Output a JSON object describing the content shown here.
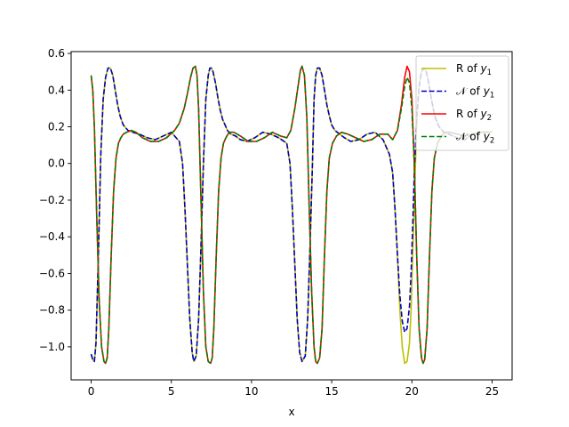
{
  "chart_data": {
    "type": "line",
    "xlabel": "x",
    "ylabel": "",
    "title": "",
    "xlim": [
      -1.25,
      26.25
    ],
    "ylim": [
      -1.18,
      0.61
    ],
    "xticks": [
      0,
      5,
      10,
      15,
      20,
      25
    ],
    "xtick_labels": [
      "0",
      "5",
      "10",
      "15",
      "20",
      "25"
    ],
    "yticks": [
      -1.0,
      -0.8,
      -0.6,
      -0.4,
      -0.2,
      0.0,
      0.2,
      0.4,
      0.6
    ],
    "ytick_labels": [
      "−1.0",
      "−0.8",
      "−0.6",
      "−0.4",
      "−0.2",
      "0.0",
      "0.2",
      "0.4",
      "0.6"
    ],
    "grid": false,
    "legend_position": "upper right",
    "series": [
      {
        "name": "R of y1",
        "legend_main": "R of ",
        "legend_var": "y",
        "legend_sub": "1",
        "color": "#bfbf00",
        "dash": "solid",
        "x": [
          0.0,
          0.1,
          0.2,
          0.3,
          0.45,
          0.6,
          0.75,
          0.9,
          1.05,
          1.2,
          1.35,
          1.5,
          1.65,
          1.8,
          2.0,
          2.3,
          2.6,
          3.0,
          3.5,
          4.0,
          4.5,
          5.0,
          5.5,
          5.7,
          5.85,
          6.0,
          6.15,
          6.3,
          6.4,
          6.55,
          6.7,
          6.85,
          7.0,
          7.15,
          7.3,
          7.4,
          7.5,
          7.6,
          7.75,
          7.9,
          8.05,
          8.2,
          8.35,
          8.5,
          8.7,
          9.0,
          9.3,
          9.7,
          10.2,
          10.7,
          11.2,
          11.7,
          12.2,
          12.4,
          12.55,
          12.7,
          12.85,
          13.0,
          13.15,
          13.35,
          13.5,
          13.65,
          13.8,
          13.9,
          14.0,
          14.1,
          14.25,
          14.4,
          14.55,
          14.7,
          14.85,
          15.0,
          15.2,
          15.5,
          15.8,
          16.2,
          16.7,
          17.2,
          17.7,
          18.2,
          18.6,
          18.8,
          18.95,
          19.1,
          19.25,
          19.4,
          19.55,
          19.7,
          19.85,
          19.95,
          20.05,
          20.15,
          20.3,
          20.45,
          20.6,
          20.75,
          20.9,
          21.05,
          21.2,
          21.35,
          21.5,
          21.7,
          22.0,
          22.3,
          22.8,
          23.3,
          23.8,
          24.3,
          24.8,
          25.0
        ],
        "y": [
          -1.04,
          -1.07,
          -1.08,
          -0.98,
          -0.5,
          0.05,
          0.35,
          0.47,
          0.52,
          0.52,
          0.48,
          0.4,
          0.32,
          0.26,
          0.21,
          0.18,
          0.17,
          0.16,
          0.14,
          0.13,
          0.15,
          0.17,
          0.12,
          0.0,
          -0.25,
          -0.55,
          -0.85,
          -1.03,
          -1.08,
          -1.05,
          -0.85,
          -0.45,
          0.0,
          0.35,
          0.48,
          0.52,
          0.52,
          0.5,
          0.44,
          0.36,
          0.29,
          0.24,
          0.21,
          0.18,
          0.16,
          0.15,
          0.13,
          0.12,
          0.14,
          0.17,
          0.16,
          0.14,
          0.11,
          0.0,
          -0.25,
          -0.55,
          -0.85,
          -1.03,
          -1.08,
          -1.05,
          -0.85,
          -0.45,
          0.0,
          0.35,
          0.48,
          0.52,
          0.52,
          0.48,
          0.4,
          0.32,
          0.26,
          0.21,
          0.18,
          0.16,
          0.14,
          0.12,
          0.13,
          0.16,
          0.17,
          0.13,
          0.05,
          -0.05,
          -0.25,
          -0.5,
          -0.8,
          -1.0,
          -1.09,
          -1.08,
          -0.98,
          -0.8,
          -0.5,
          -0.2,
          0.2,
          0.42,
          0.5,
          0.52,
          0.5,
          0.44,
          0.36,
          0.29,
          0.24,
          0.2,
          0.17,
          0.16,
          0.14,
          0.13,
          0.16,
          0.17,
          0.17,
          0.17
        ]
      },
      {
        "name": "N of y1",
        "legend_main": "𝒩 of ",
        "legend_var": "y",
        "legend_sub": "1",
        "color": "#0000bf",
        "dash": "dashed",
        "x": [
          0.0,
          0.1,
          0.2,
          0.3,
          0.45,
          0.6,
          0.75,
          0.9,
          1.05,
          1.2,
          1.35,
          1.5,
          1.65,
          1.8,
          2.0,
          2.3,
          2.6,
          3.0,
          3.5,
          4.0,
          4.5,
          5.0,
          5.5,
          5.7,
          5.85,
          6.0,
          6.15,
          6.3,
          6.4,
          6.55,
          6.7,
          6.85,
          7.0,
          7.15,
          7.3,
          7.4,
          7.5,
          7.6,
          7.75,
          7.9,
          8.05,
          8.2,
          8.35,
          8.5,
          8.7,
          9.0,
          9.3,
          9.7,
          10.2,
          10.7,
          11.2,
          11.7,
          12.2,
          12.4,
          12.55,
          12.7,
          12.85,
          13.0,
          13.15,
          13.35,
          13.5,
          13.65,
          13.8,
          13.9,
          14.0,
          14.1,
          14.25,
          14.4,
          14.55,
          14.7,
          14.85,
          15.0,
          15.2,
          15.5,
          15.8,
          16.2,
          16.7,
          17.2,
          17.7,
          18.2,
          18.6,
          18.8,
          18.95,
          19.1,
          19.25,
          19.4,
          19.55,
          19.7,
          19.85,
          19.95,
          20.05,
          20.15,
          20.3,
          20.45,
          20.6,
          20.75,
          20.9,
          21.05,
          21.2,
          21.35,
          21.5,
          21.7,
          22.0,
          22.3,
          22.8,
          23.3,
          23.8,
          24.3,
          24.8,
          25.0
        ],
        "y": [
          -1.04,
          -1.07,
          -1.08,
          -0.98,
          -0.5,
          0.05,
          0.35,
          0.47,
          0.52,
          0.52,
          0.48,
          0.4,
          0.32,
          0.26,
          0.21,
          0.18,
          0.17,
          0.16,
          0.14,
          0.13,
          0.15,
          0.17,
          0.12,
          0.0,
          -0.25,
          -0.55,
          -0.85,
          -1.03,
          -1.08,
          -1.05,
          -0.85,
          -0.45,
          0.0,
          0.35,
          0.48,
          0.52,
          0.52,
          0.5,
          0.44,
          0.36,
          0.29,
          0.24,
          0.21,
          0.18,
          0.16,
          0.15,
          0.13,
          0.12,
          0.14,
          0.17,
          0.16,
          0.14,
          0.11,
          0.0,
          -0.25,
          -0.55,
          -0.85,
          -1.03,
          -1.08,
          -1.05,
          -0.85,
          -0.45,
          0.0,
          0.35,
          0.48,
          0.52,
          0.52,
          0.48,
          0.4,
          0.32,
          0.26,
          0.21,
          0.18,
          0.16,
          0.14,
          0.12,
          0.13,
          0.16,
          0.17,
          0.13,
          0.05,
          -0.05,
          -0.25,
          -0.5,
          -0.72,
          -0.86,
          -0.92,
          -0.9,
          -0.78,
          -0.6,
          -0.35,
          -0.05,
          0.25,
          0.42,
          0.5,
          0.52,
          0.5,
          0.44,
          0.36,
          0.29,
          0.24,
          0.2,
          0.17,
          0.16,
          0.14,
          0.13,
          0.16,
          0.17,
          0.17,
          0.17
        ]
      },
      {
        "name": "R of y2",
        "legend_main": "R of ",
        "legend_var": "y",
        "legend_sub": "2",
        "color": "#ff0000",
        "dash": "solid",
        "x": [
          0.0,
          0.1,
          0.2,
          0.35,
          0.5,
          0.65,
          0.8,
          0.9,
          1.0,
          1.1,
          1.25,
          1.4,
          1.55,
          1.7,
          1.85,
          2.0,
          2.2,
          2.5,
          2.8,
          3.2,
          3.7,
          4.2,
          4.7,
          5.2,
          5.5,
          5.8,
          6.0,
          6.2,
          6.35,
          6.5,
          6.6,
          6.7,
          6.85,
          7.0,
          7.15,
          7.3,
          7.45,
          7.55,
          7.65,
          7.8,
          7.95,
          8.1,
          8.25,
          8.4,
          8.6,
          8.9,
          9.3,
          9.8,
          10.3,
          10.8,
          11.3,
          11.8,
          12.2,
          12.45,
          12.7,
          12.9,
          13.05,
          13.15,
          13.3,
          13.45,
          13.6,
          13.75,
          13.9,
          14.0,
          14.1,
          14.25,
          14.4,
          14.55,
          14.7,
          14.85,
          15.05,
          15.3,
          15.6,
          16.0,
          16.5,
          17.0,
          17.5,
          18.0,
          18.5,
          18.8,
          19.1,
          19.35,
          19.55,
          19.7,
          19.85,
          20.0,
          20.15,
          20.3,
          20.45,
          20.6,
          20.7,
          20.8,
          20.95,
          21.1,
          21.25,
          21.4,
          21.6,
          21.85,
          22.1,
          22.4,
          22.8,
          23.3,
          23.8,
          24.3,
          24.8,
          25.0
        ],
        "y": [
          0.48,
          0.4,
          0.2,
          -0.3,
          -0.75,
          -1.0,
          -1.08,
          -1.09,
          -1.06,
          -0.9,
          -0.5,
          -0.15,
          0.03,
          0.11,
          0.14,
          0.16,
          0.17,
          0.18,
          0.17,
          0.14,
          0.12,
          0.12,
          0.14,
          0.18,
          0.22,
          0.3,
          0.38,
          0.47,
          0.52,
          0.53,
          0.48,
          0.3,
          -0.2,
          -0.7,
          -1.0,
          -1.08,
          -1.09,
          -1.06,
          -0.9,
          -0.5,
          -0.15,
          0.03,
          0.11,
          0.14,
          0.17,
          0.17,
          0.15,
          0.12,
          0.12,
          0.14,
          0.17,
          0.15,
          0.14,
          0.18,
          0.3,
          0.42,
          0.51,
          0.53,
          0.48,
          0.25,
          -0.25,
          -0.7,
          -1.0,
          -1.08,
          -1.09,
          -1.06,
          -0.9,
          -0.5,
          -0.15,
          0.03,
          0.11,
          0.15,
          0.17,
          0.16,
          0.14,
          0.12,
          0.13,
          0.16,
          0.16,
          0.13,
          0.18,
          0.32,
          0.47,
          0.53,
          0.5,
          0.35,
          0.0,
          -0.5,
          -0.9,
          -1.06,
          -1.09,
          -1.07,
          -0.9,
          -0.5,
          -0.15,
          0.03,
          0.11,
          0.15,
          0.17,
          0.17,
          0.16,
          0.15,
          0.16,
          0.17,
          0.17,
          0.17
        ]
      },
      {
        "name": "N of y2",
        "legend_main": "𝒩 of ",
        "legend_var": "y",
        "legend_sub": "2",
        "color": "#008000",
        "dash": "dashed",
        "x": [
          0.0,
          0.1,
          0.2,
          0.35,
          0.5,
          0.65,
          0.8,
          0.9,
          1.0,
          1.1,
          1.25,
          1.4,
          1.55,
          1.7,
          1.85,
          2.0,
          2.2,
          2.5,
          2.8,
          3.2,
          3.7,
          4.2,
          4.7,
          5.2,
          5.5,
          5.8,
          6.0,
          6.2,
          6.35,
          6.5,
          6.6,
          6.7,
          6.85,
          7.0,
          7.15,
          7.3,
          7.45,
          7.55,
          7.65,
          7.8,
          7.95,
          8.1,
          8.25,
          8.4,
          8.6,
          8.9,
          9.3,
          9.8,
          10.3,
          10.8,
          11.3,
          11.8,
          12.2,
          12.45,
          12.7,
          12.9,
          13.05,
          13.15,
          13.3,
          13.45,
          13.6,
          13.75,
          13.9,
          14.0,
          14.1,
          14.25,
          14.4,
          14.55,
          14.7,
          14.85,
          15.05,
          15.3,
          15.6,
          16.0,
          16.5,
          17.0,
          17.5,
          18.0,
          18.5,
          18.8,
          19.1,
          19.35,
          19.55,
          19.7,
          19.85,
          20.0,
          20.15,
          20.3,
          20.45,
          20.6,
          20.7,
          20.8,
          20.95,
          21.1,
          21.25,
          21.4,
          21.6,
          21.85,
          22.1,
          22.4,
          22.8,
          23.3,
          23.8,
          24.3,
          24.8,
          25.0
        ],
        "y": [
          0.48,
          0.4,
          0.2,
          -0.3,
          -0.75,
          -1.0,
          -1.08,
          -1.09,
          -1.06,
          -0.9,
          -0.5,
          -0.15,
          0.03,
          0.11,
          0.14,
          0.16,
          0.17,
          0.18,
          0.17,
          0.14,
          0.12,
          0.12,
          0.14,
          0.18,
          0.22,
          0.3,
          0.38,
          0.47,
          0.52,
          0.53,
          0.48,
          0.3,
          -0.2,
          -0.7,
          -1.0,
          -1.08,
          -1.09,
          -1.06,
          -0.9,
          -0.5,
          -0.15,
          0.03,
          0.11,
          0.14,
          0.17,
          0.17,
          0.15,
          0.12,
          0.12,
          0.14,
          0.17,
          0.15,
          0.14,
          0.18,
          0.3,
          0.42,
          0.51,
          0.53,
          0.48,
          0.25,
          -0.25,
          -0.7,
          -1.0,
          -1.08,
          -1.09,
          -1.06,
          -0.9,
          -0.5,
          -0.15,
          0.03,
          0.11,
          0.15,
          0.17,
          0.16,
          0.14,
          0.12,
          0.13,
          0.16,
          0.16,
          0.13,
          0.18,
          0.3,
          0.42,
          0.47,
          0.44,
          0.3,
          0.0,
          -0.5,
          -0.9,
          -1.06,
          -1.09,
          -1.07,
          -0.9,
          -0.5,
          -0.15,
          0.03,
          0.11,
          0.15,
          0.17,
          0.17,
          0.16,
          0.15,
          0.16,
          0.17,
          0.17,
          0.17
        ]
      }
    ]
  }
}
